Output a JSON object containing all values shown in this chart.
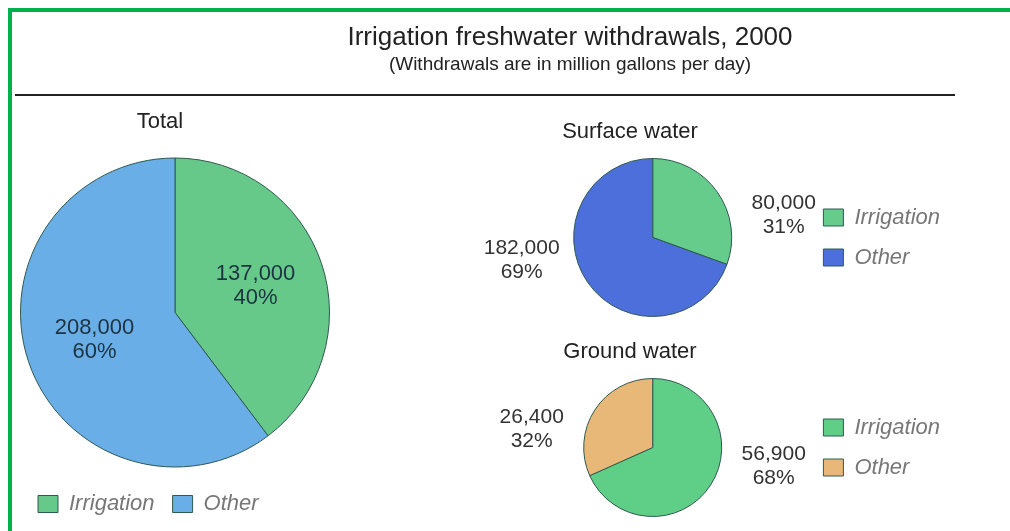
{
  "chart_data": [
    {
      "type": "pie",
      "title": "Total",
      "annotations": [
        "Irrigation freshwater withdrawals, 2000",
        "(Withdrawals are in million gallons per day)"
      ],
      "categories": [
        "Irrigation",
        "Other"
      ],
      "values": [
        137000,
        208000
      ],
      "colors": [
        "#66c98a",
        "#6aaee8"
      ],
      "value_labels": [
        "137,000\n40%",
        "208,000\n60%"
      ],
      "legend": "bottom"
    },
    {
      "type": "pie",
      "title": "Surface water",
      "categories": [
        "Irrigation",
        "Other"
      ],
      "values": [
        80000,
        182000
      ],
      "colors": [
        "#66cc8c",
        "#4d6fdc"
      ],
      "value_labels": [
        "80,000\n31%",
        "182,000\n69%"
      ],
      "legend": "right"
    },
    {
      "type": "pie",
      "title": "Ground water",
      "categories": [
        "Irrigation",
        "Other"
      ],
      "values": [
        56900,
        26400
      ],
      "colors": [
        "#5fcf87",
        "#e8b879"
      ],
      "value_labels": [
        "56,900\n68%",
        "26,400\n32%"
      ],
      "legend": "right"
    }
  ]
}
